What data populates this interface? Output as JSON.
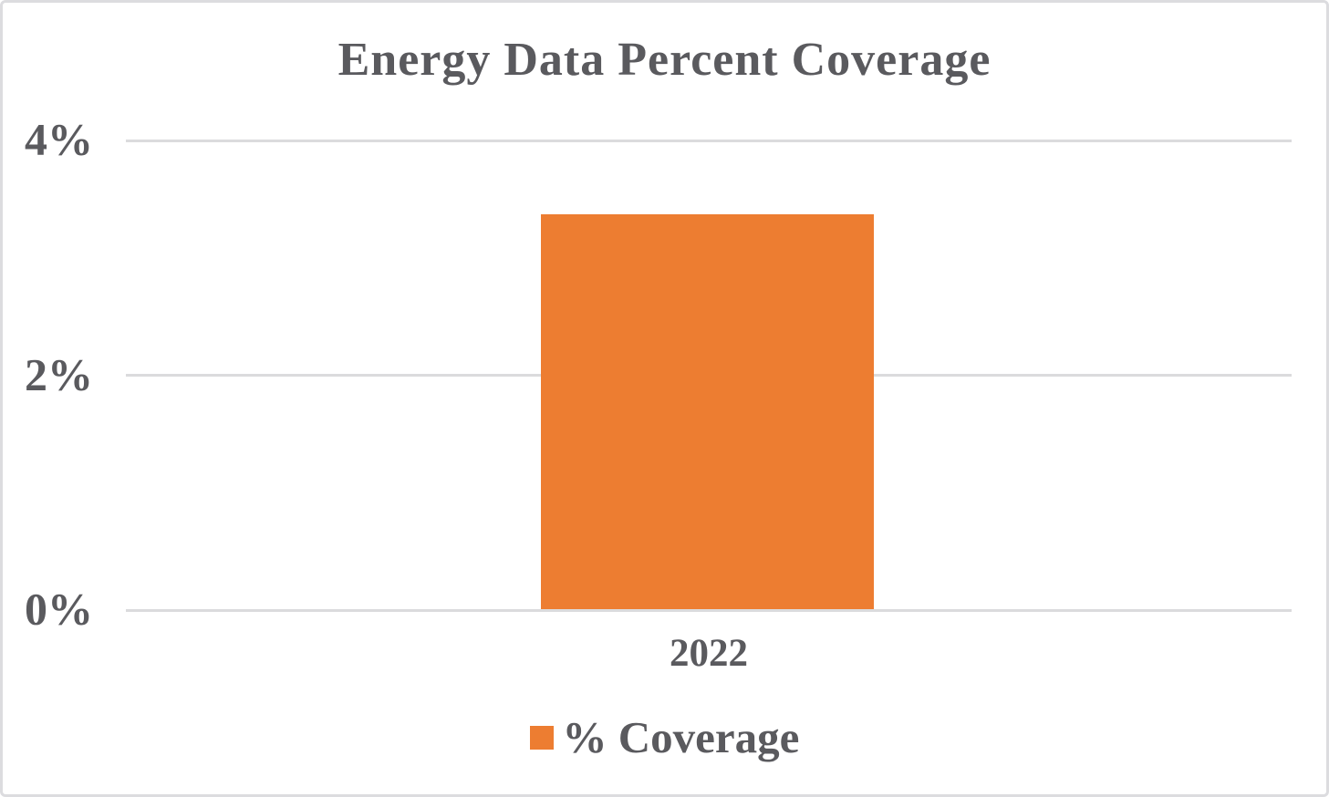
{
  "chart_data": {
    "type": "bar",
    "title": "Energy Data Percent Coverage",
    "categories": [
      "2022"
    ],
    "series": [
      {
        "name": "% Coverage",
        "values": [
          3.37
        ]
      }
    ],
    "xlabel": "",
    "ylabel": "",
    "ylim": [
      0,
      4
    ],
    "ytick_labels": [
      "0%",
      "2%",
      "4%"
    ],
    "ytick_values": [
      0,
      2,
      4
    ],
    "grid": "horizontal-only",
    "legend_position": "bottom-center",
    "colors": {
      "bar": "#ED7D31",
      "text": "#5a5a5e",
      "gridline": "#dbdbdd",
      "border": "#dcdcdf",
      "background": "#ffffff"
    }
  }
}
